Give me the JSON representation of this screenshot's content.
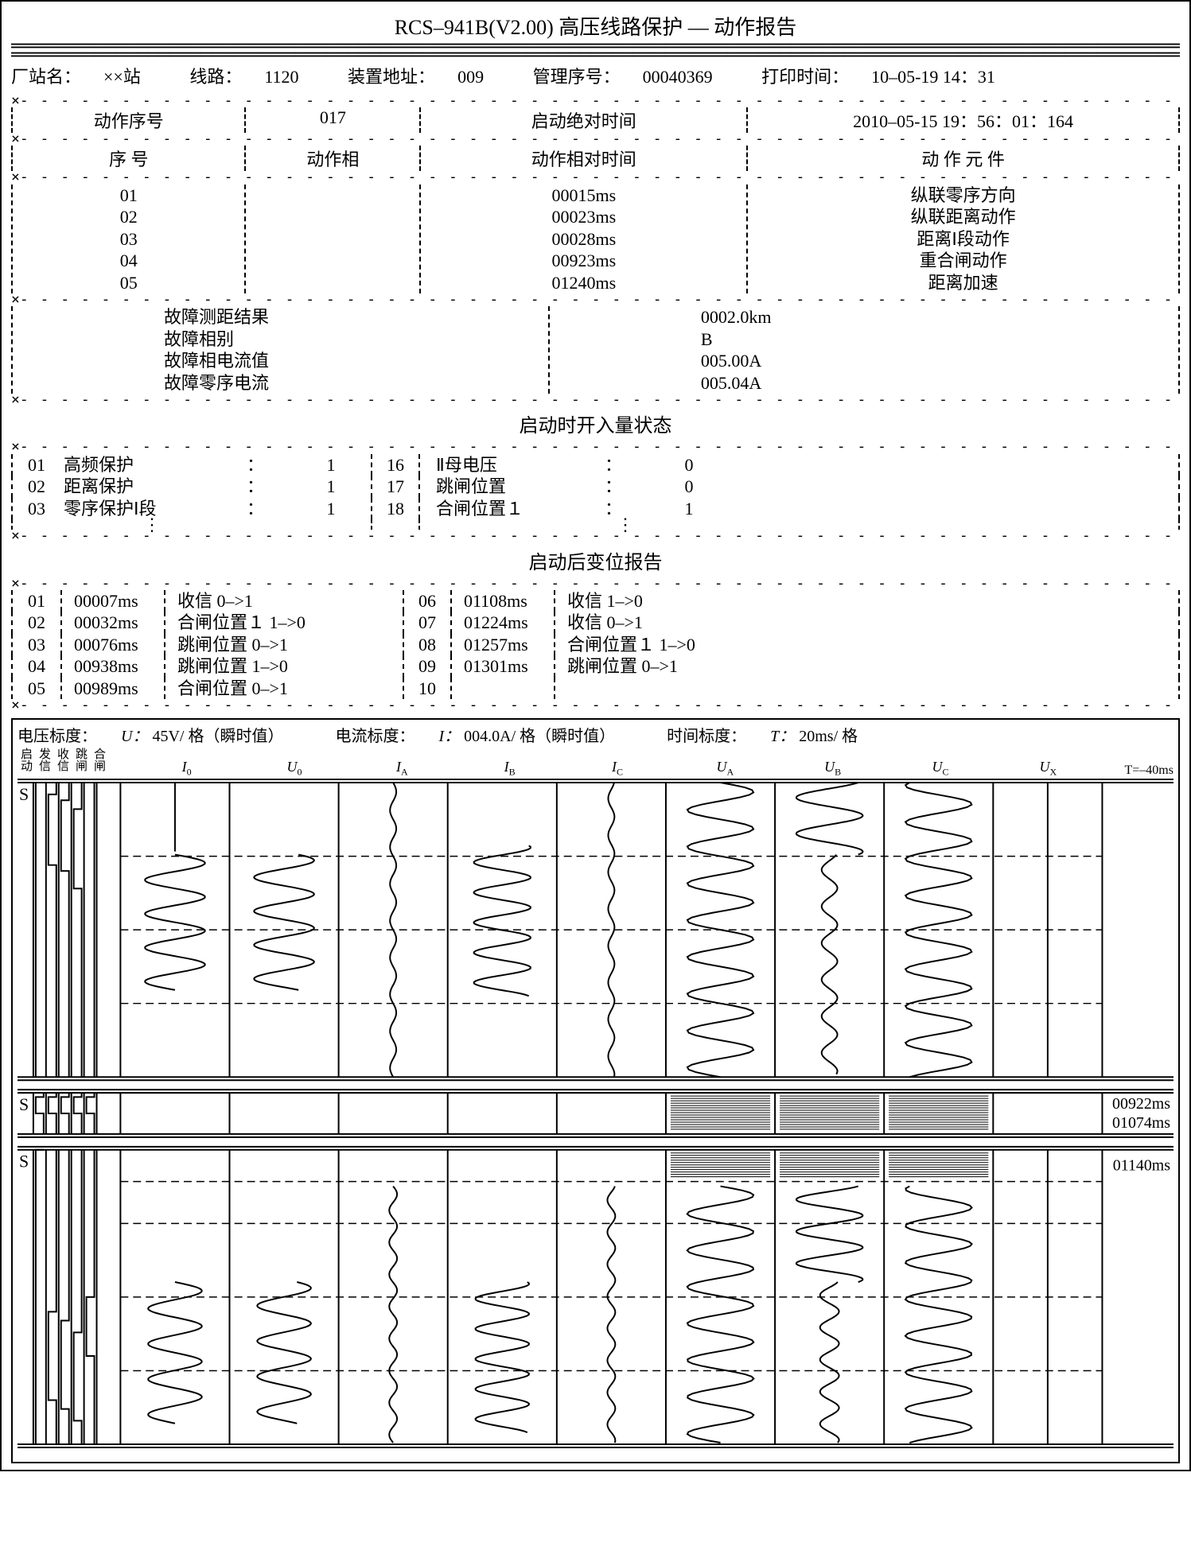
{
  "title": "RCS–941B(V2.00) 高压线路保护 — 动作报告",
  "header": {
    "station_label": "厂站名：",
    "station": "××站",
    "line_label": "线路：",
    "line": "1120",
    "addr_label": "装置地址：",
    "addr": "009",
    "mgmt_label": "管理序号：",
    "mgmt": "00040369",
    "print_label": "打印时间：",
    "print": "10–05-19  14：31"
  },
  "action_header": {
    "seq_label": "动作序号",
    "seq": "017",
    "abs_time_label": "启动绝对时间",
    "abs_time": "2010–05-15 19：56：01：164"
  },
  "action_cols": {
    "c1": "序     号",
    "c2": "动作相",
    "c3": "动作相对时间",
    "c4": "动  作  元  件"
  },
  "actions": {
    "n1": "01",
    "t1": "00015ms",
    "e1": "纵联零序方向",
    "n2": "02",
    "t2": "00023ms",
    "e2": "纵联距离动作",
    "n3": "03",
    "t3": "00028ms",
    "e3": "距离Ⅰ段动作",
    "n4": "04",
    "t4": "00923ms",
    "e4": "重合闸动作",
    "n5": "05",
    "t5": "01240ms",
    "e5": "距离加速"
  },
  "fault": {
    "l1": "故障测距结果",
    "v1": "0002.0km",
    "l2": "故障相别",
    "v2": "B",
    "l3": "故障相电流值",
    "v3": "005.00A",
    "l4": "故障零序电流",
    "v4": "005.04A"
  },
  "di_title": "启动时开入量状态",
  "di": {
    "a1n": "01",
    "a1": "高频保护",
    "a1v": "1",
    "b1n": "16",
    "b1": "Ⅱ母电压",
    "b1v": "0",
    "a2n": "02",
    "a2": "距离保护",
    "a2v": "1",
    "b2n": "17",
    "b2": "跳闸位置",
    "b2v": "0",
    "a3n": "03",
    "a3": "零序保护Ⅰ段",
    "a3v": "1",
    "b3n": "18",
    "b3": "合闸位置１",
    "b3v": "1"
  },
  "chg_title": "启动后变位报告",
  "chg": {
    "a1n": "01",
    "a1t": "00007ms",
    "a1d": "收信 0–>1",
    "b1n": "06",
    "b1t": "01108ms",
    "b1d": "收信 1–>0",
    "a2n": "02",
    "a2t": "00032ms",
    "a2d": "合闸位置１ 1–>0",
    "b2n": "07",
    "b2t": "01224ms",
    "b2d": "收信 0–>1",
    "a3n": "03",
    "a3t": "00076ms",
    "a3d": "跳闸位置 0–>1",
    "b3n": "08",
    "b3t": "01257ms",
    "b3d": "合闸位置１ 1–>0",
    "a4n": "04",
    "a4t": "00938ms",
    "a4d": "跳闸位置 1–>0",
    "b4n": "09",
    "b4t": "01301ms",
    "b4d": "跳闸位置 0–>1",
    "a5n": "05",
    "a5t": "00989ms",
    "a5d": "合闸位置 0–>1",
    "b5n": "10",
    "b5t": "",
    "b5d": ""
  },
  "wave": {
    "u_label": "电压标度：",
    "u_sym": "U：",
    "u_scale": "45V/ 格（瞬时值）",
    "i_label": "电流标度：",
    "i_sym": "I：",
    "i_scale": "004.0A/ 格（瞬时值）",
    "t_label": "时间标度：",
    "t_sym": "T：",
    "t_scale": "20ms/ 格",
    "t0": "T=–40ms",
    "channels": {
      "d1": "启动",
      "d2": "发信",
      "d3": "收信",
      "d4": "跳闸",
      "d5": "合闸",
      "c1": "I",
      "c1s": "0",
      "c2": "U",
      "c2s": "0",
      "c3": "I",
      "c3s": "A",
      "c4": "I",
      "c4s": "B",
      "c5": "I",
      "c5s": "C",
      "c6": "U",
      "c6s": "A",
      "c7": "U",
      "c7s": "B",
      "c8": "U",
      "c8s": "C",
      "c9": "U",
      "c9s": "X"
    },
    "times": {
      "t1": "00922ms",
      "t2": "01074ms",
      "t3": "01140ms"
    },
    "s_label": "S",
    "panel1_h": 380,
    "panel2_h": 60,
    "panel3_h": 380,
    "n_digital": 5,
    "n_analog": 9
  }
}
